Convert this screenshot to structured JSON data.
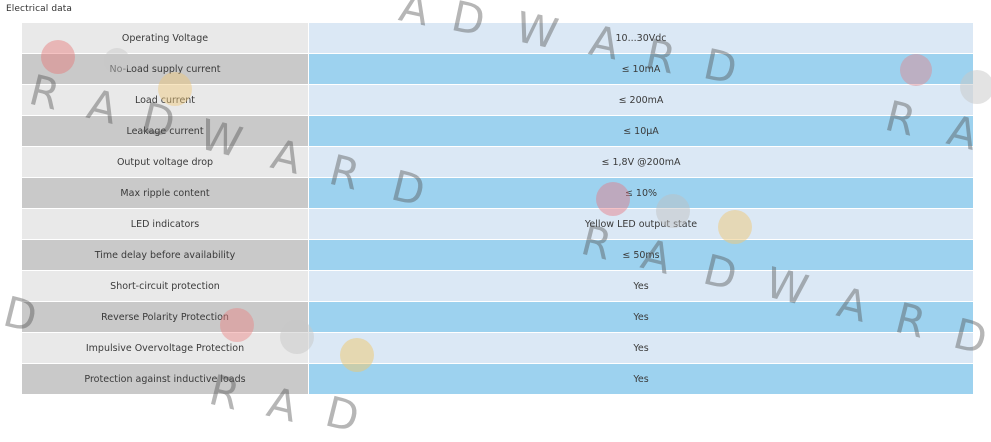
{
  "section": {
    "title": "Electrical data"
  },
  "rows": [
    {
      "label": "Operating Voltage",
      "value": "10...30Vdc"
    },
    {
      "label": "No-Load supply current",
      "value": "≤ 10mA"
    },
    {
      "label": "Load current",
      "value": "≤ 200mA"
    },
    {
      "label": "Leakage current",
      "value": "≤ 10µA"
    },
    {
      "label": "Output voltage drop",
      "value": "≤ 1,8V @200mA"
    },
    {
      "label": "Max ripple content",
      "value": "≤ 10%"
    },
    {
      "label": "LED indicators",
      "value": "Yellow LED output state"
    },
    {
      "label": "Time delay before availability",
      "value": "≤ 50ms"
    },
    {
      "label": "Short-circuit protection",
      "value": "Yes"
    },
    {
      "label": "Reverse Polarity Protection",
      "value": "Yes"
    },
    {
      "label": "Impulsive Overvoltage Protection",
      "value": "Yes"
    },
    {
      "label": "Protection against inductive loads",
      "value": "Yes"
    }
  ],
  "colors": {
    "label_light": "#e9e9e9",
    "label_dark": "#c9c9c9",
    "value_light": "#dbe8f5",
    "value_dark": "#9dd2ef"
  },
  "watermark": {
    "text": "RADWARD"
  }
}
